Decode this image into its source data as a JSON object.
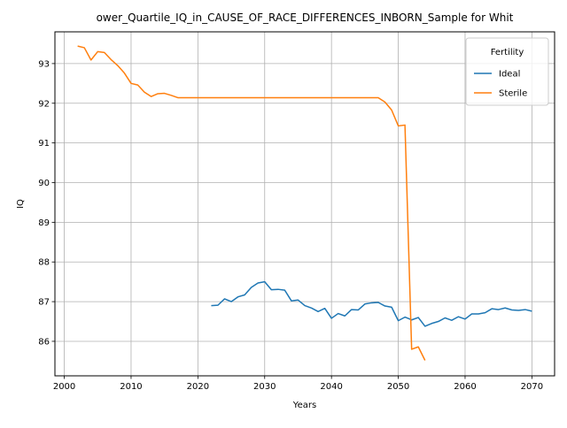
{
  "chart_data": {
    "type": "line",
    "title": "ower_Quartile_IQ_in_CAUSE_OF_RACE_DIFFERENCES_INBORN_Sample for Whit",
    "xlabel": "Years",
    "ylabel": "IQ",
    "xlim": [
      1998.6,
      2073.4
    ],
    "ylim": [
      85.13,
      93.8
    ],
    "xticks": [
      2000,
      2010,
      2020,
      2030,
      2040,
      2050,
      2060,
      2070
    ],
    "yticks": [
      86,
      87,
      88,
      89,
      90,
      91,
      92,
      93
    ],
    "grid": true,
    "legend": {
      "title": "Fertility",
      "placement": "top-right"
    },
    "series": [
      {
        "name": "Ideal",
        "color": "#1f77b4",
        "x": [
          2022,
          2023,
          2024,
          2025,
          2026,
          2027,
          2028,
          2029,
          2030,
          2031,
          2032,
          2033,
          2034,
          2035,
          2036,
          2037,
          2038,
          2039,
          2040,
          2041,
          2042,
          2043,
          2044,
          2045,
          2046,
          2047,
          2048,
          2049,
          2050,
          2051,
          2052,
          2053,
          2054,
          2055,
          2056,
          2057,
          2058,
          2059,
          2060,
          2061,
          2062,
          2063,
          2064,
          2065,
          2066,
          2067,
          2068,
          2069,
          2070
        ],
        "y": [
          86.9,
          86.91,
          87.07,
          87.0,
          87.12,
          87.17,
          87.36,
          87.47,
          87.5,
          87.3,
          87.31,
          87.29,
          87.02,
          87.04,
          86.9,
          86.84,
          86.75,
          86.83,
          86.58,
          86.7,
          86.64,
          86.8,
          86.79,
          86.94,
          86.97,
          86.98,
          86.89,
          86.86,
          86.52,
          86.61,
          86.54,
          86.6,
          86.38,
          86.45,
          86.5,
          86.59,
          86.53,
          86.62,
          86.56,
          86.69,
          86.69,
          86.72,
          86.82,
          86.8,
          86.84,
          86.79,
          86.78,
          86.8,
          86.76
        ]
      },
      {
        "name": "Sterile",
        "color": "#ff7f0e",
        "x": [
          2002,
          2003,
          2004,
          2005,
          2006,
          2007,
          2008,
          2009,
          2010,
          2011,
          2012,
          2013,
          2014,
          2015,
          2016,
          2017,
          2018,
          2019,
          2020,
          2021,
          2022,
          2023,
          2024,
          2025,
          2026,
          2027,
          2028,
          2029,
          2030,
          2031,
          2032,
          2033,
          2034,
          2035,
          2036,
          2037,
          2038,
          2039,
          2040,
          2041,
          2042,
          2043,
          2044,
          2045,
          2046,
          2047,
          2048,
          2049,
          2050,
          2051,
          2052,
          2053,
          2054
        ],
        "y": [
          93.44,
          93.4,
          93.09,
          93.3,
          93.28,
          93.1,
          92.95,
          92.76,
          92.5,
          92.46,
          92.28,
          92.17,
          92.24,
          92.25,
          92.2,
          92.14,
          92.14,
          92.14,
          92.14,
          92.14,
          92.14,
          92.14,
          92.14,
          92.14,
          92.14,
          92.14,
          92.14,
          92.14,
          92.14,
          92.14,
          92.14,
          92.14,
          92.14,
          92.14,
          92.14,
          92.14,
          92.14,
          92.14,
          92.14,
          92.14,
          92.14,
          92.14,
          92.14,
          92.14,
          92.14,
          92.14,
          92.03,
          91.83,
          91.43,
          91.45,
          85.8,
          85.86,
          85.52
        ]
      }
    ]
  }
}
